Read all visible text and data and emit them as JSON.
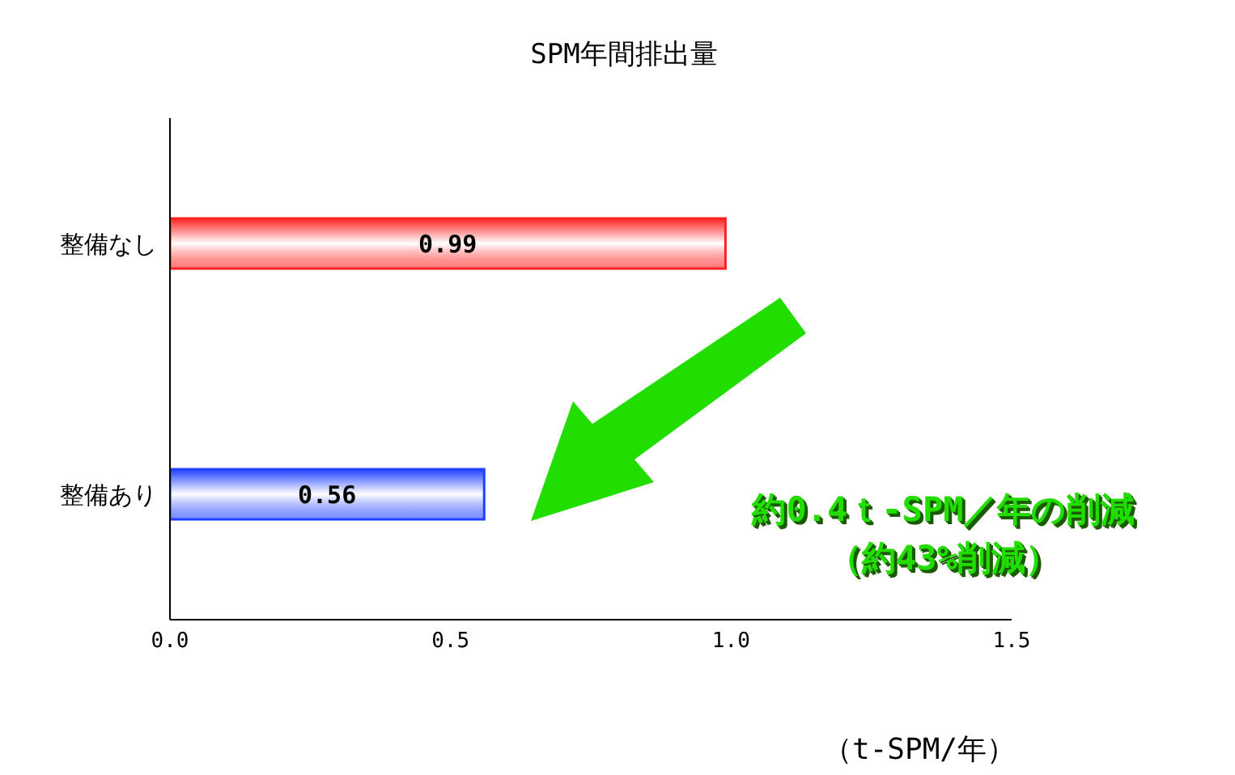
{
  "chart_data": {
    "type": "bar",
    "orientation": "horizontal",
    "title": "SPM年間排出量",
    "xlabel": "（t-SPM/年）",
    "categories": [
      "整備なし",
      "整備あり"
    ],
    "values": [
      0.99,
      0.56
    ],
    "colors": [
      "#ff2020",
      "#2040ff"
    ],
    "xlim": [
      0,
      1.5
    ],
    "xticks": [
      {
        "value": 0,
        "label": "0.0"
      },
      {
        "value": 0.5,
        "label": "0.5"
      },
      {
        "value": 1,
        "label": "1.0"
      },
      {
        "value": 1.5,
        "label": "1.5"
      }
    ],
    "data_labels": true,
    "annotations": [
      "約0.4ｔ-SPM／年の削減",
      "（約43%削減）"
    ]
  }
}
